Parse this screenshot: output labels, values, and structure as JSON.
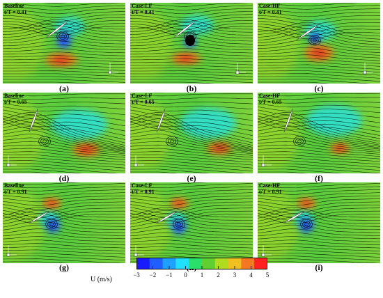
{
  "panels": [
    {
      "letter": "(a)",
      "case": "Baseline",
      "time": "t/T = 0.41"
    },
    {
      "letter": "(b)",
      "case": "Case-LF",
      "time": "t/T = 0.41"
    },
    {
      "letter": "(c)",
      "case": "Case-HF",
      "time": "t/T = 0.41"
    },
    {
      "letter": "(d)",
      "case": "Baseline",
      "time": "t/T = 0.65"
    },
    {
      "letter": "(e)",
      "case": "Case-LF",
      "time": "t/T = 0.65"
    },
    {
      "letter": "(f)",
      "case": "Case-HF",
      "time": "t/T = 0.65"
    },
    {
      "letter": "(g)",
      "case": "Baseline",
      "time": "t/T = 0.91"
    },
    {
      "letter": "(h)",
      "case": "Case-LF",
      "time": "t/T = 0.91"
    },
    {
      "letter": "(i)",
      "case": "Case-HF",
      "time": "t/T = 0.91"
    }
  ],
  "colorbar": {
    "title": "U (m/s)",
    "ticks": [
      "−3",
      "−2",
      "−1",
      "0",
      "1",
      "2",
      "3",
      "4",
      "5"
    ],
    "colors": [
      "#1a1aff",
      "#1f5fff",
      "#1ea0ff",
      "#20e0ff",
      "#28e06a",
      "#60d030",
      "#b0dc20",
      "#f0c020",
      "#f57820",
      "#ff2020"
    ]
  }
}
